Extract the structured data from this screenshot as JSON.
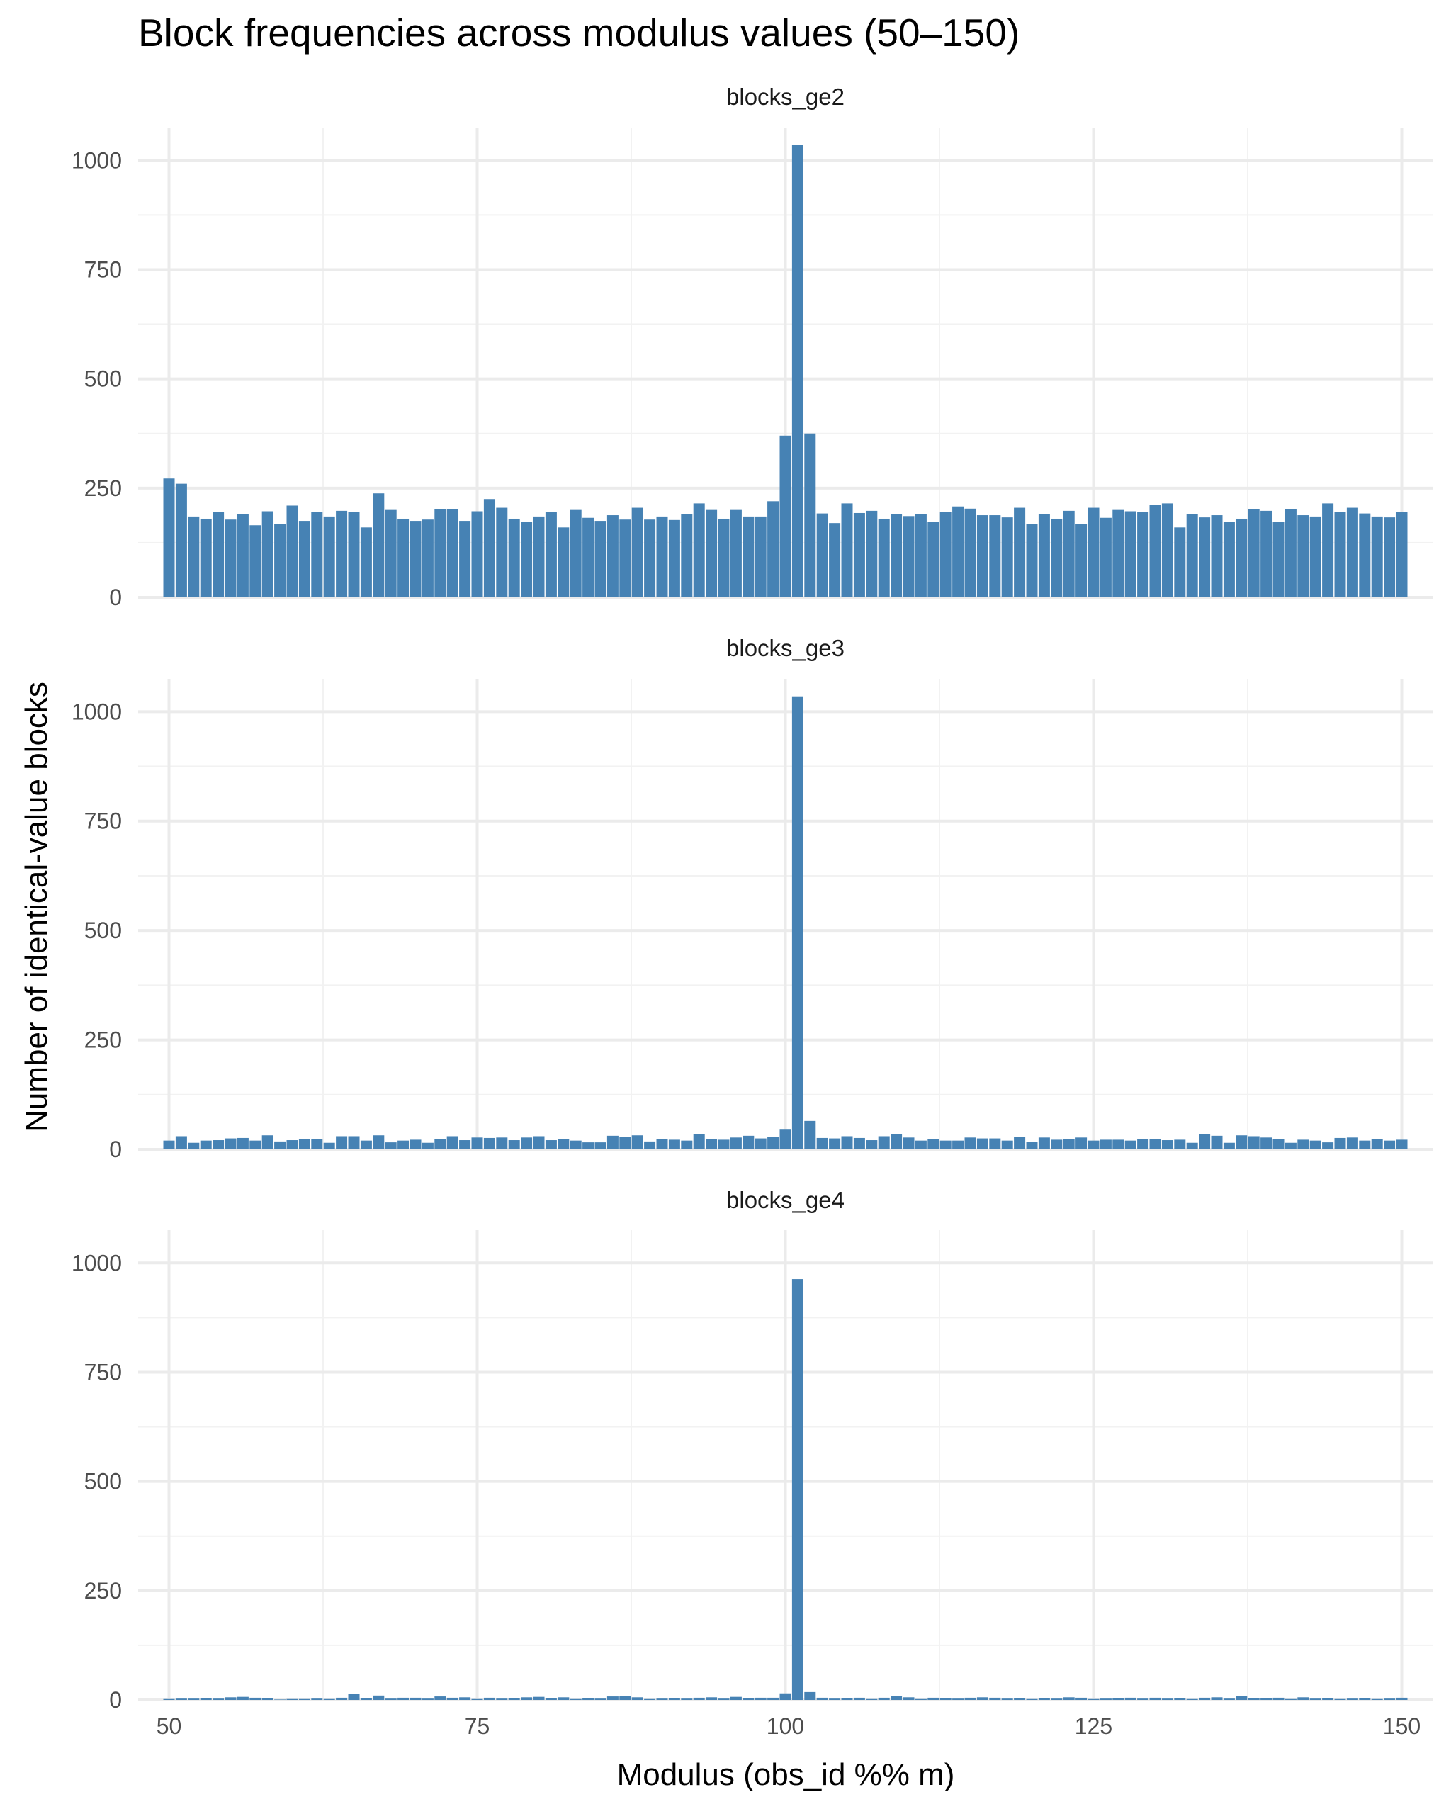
{
  "chart_data": {
    "type": "bar",
    "title": "Block frequencies across modulus values (50–150)",
    "xlabel": "Modulus (obs_id %% m)",
    "ylabel": "Number of identical-value blocks",
    "x_ticks": [
      50,
      75,
      100,
      125,
      150
    ],
    "y_ticks": [
      0,
      250,
      500,
      750,
      1000
    ],
    "xlim": [
      47.5,
      152.5
    ],
    "ylim": [
      0,
      1075
    ],
    "grid": true,
    "bar_color": "#4682B4",
    "x": [
      50,
      51,
      52,
      53,
      54,
      55,
      56,
      57,
      58,
      59,
      60,
      61,
      62,
      63,
      64,
      65,
      66,
      67,
      68,
      69,
      70,
      71,
      72,
      73,
      74,
      75,
      76,
      77,
      78,
      79,
      80,
      81,
      82,
      83,
      84,
      85,
      86,
      87,
      88,
      89,
      90,
      91,
      92,
      93,
      94,
      95,
      96,
      97,
      98,
      99,
      100,
      101,
      102,
      103,
      104,
      105,
      106,
      107,
      108,
      109,
      110,
      111,
      112,
      113,
      114,
      115,
      116,
      117,
      118,
      119,
      120,
      121,
      122,
      123,
      124,
      125,
      126,
      127,
      128,
      129,
      130,
      131,
      132,
      133,
      134,
      135,
      136,
      137,
      138,
      139,
      140,
      141,
      142,
      143,
      144,
      145,
      146,
      147,
      148,
      149,
      150
    ],
    "panels": [
      {
        "name": "blocks_ge2",
        "values": [
          272,
          260,
          185,
          180,
          195,
          178,
          190,
          165,
          197,
          168,
          210,
          175,
          195,
          185,
          198,
          195,
          160,
          238,
          200,
          180,
          175,
          178,
          202,
          202,
          175,
          197,
          225,
          205,
          180,
          173,
          185,
          195,
          160,
          200,
          182,
          175,
          188,
          178,
          205,
          178,
          185,
          177,
          190,
          215,
          200,
          180,
          200,
          185,
          185,
          220,
          370,
          1035,
          375,
          192,
          170,
          215,
          193,
          198,
          180,
          190,
          186,
          190,
          173,
          195,
          208,
          203,
          188,
          188,
          183,
          205,
          168,
          190,
          180,
          198,
          168,
          205,
          182,
          200,
          197,
          195,
          212,
          215,
          160,
          190,
          183,
          188,
          172,
          180,
          202,
          198,
          172,
          202,
          188,
          185,
          215,
          195,
          205,
          192,
          185,
          183,
          195
        ]
      },
      {
        "name": "blocks_ge3",
        "values": [
          20,
          30,
          15,
          20,
          21,
          25,
          26,
          20,
          32,
          18,
          21,
          24,
          24,
          15,
          30,
          30,
          20,
          32,
          16,
          20,
          22,
          15,
          24,
          30,
          21,
          27,
          26,
          27,
          21,
          27,
          30,
          21,
          24,
          20,
          16,
          16,
          31,
          28,
          32,
          18,
          23,
          22,
          20,
          34,
          23,
          22,
          27,
          31,
          25,
          29,
          45,
          1035,
          65,
          26,
          25,
          30,
          26,
          21,
          30,
          35,
          27,
          20,
          23,
          20,
          20,
          27,
          25,
          25,
          20,
          28,
          17,
          27,
          22,
          24,
          27,
          20,
          22,
          22,
          20,
          24,
          24,
          21,
          22,
          15,
          34,
          31,
          15,
          32,
          30,
          27,
          24,
          15,
          22,
          20,
          16,
          26,
          27,
          20,
          23,
          20,
          22
        ]
      },
      {
        "name": "blocks_ge4",
        "values": [
          2,
          3,
          3,
          4,
          3,
          6,
          7,
          5,
          4,
          1,
          2,
          2,
          3,
          2,
          5,
          13,
          4,
          10,
          3,
          5,
          5,
          3,
          8,
          5,
          6,
          2,
          5,
          3,
          4,
          6,
          7,
          4,
          6,
          2,
          4,
          3,
          8,
          9,
          6,
          2,
          3,
          4,
          3,
          5,
          6,
          3,
          7,
          4,
          5,
          5,
          15,
          963,
          18,
          5,
          3,
          4,
          5,
          2,
          5,
          9,
          6,
          2,
          5,
          4,
          3,
          5,
          6,
          5,
          3,
          4,
          2,
          4,
          3,
          6,
          5,
          2,
          3,
          4,
          5,
          3,
          5,
          3,
          4,
          2,
          5,
          6,
          3,
          9,
          4,
          4,
          5,
          2,
          6,
          3,
          4,
          2,
          3,
          4,
          2,
          3,
          5
        ]
      }
    ]
  }
}
